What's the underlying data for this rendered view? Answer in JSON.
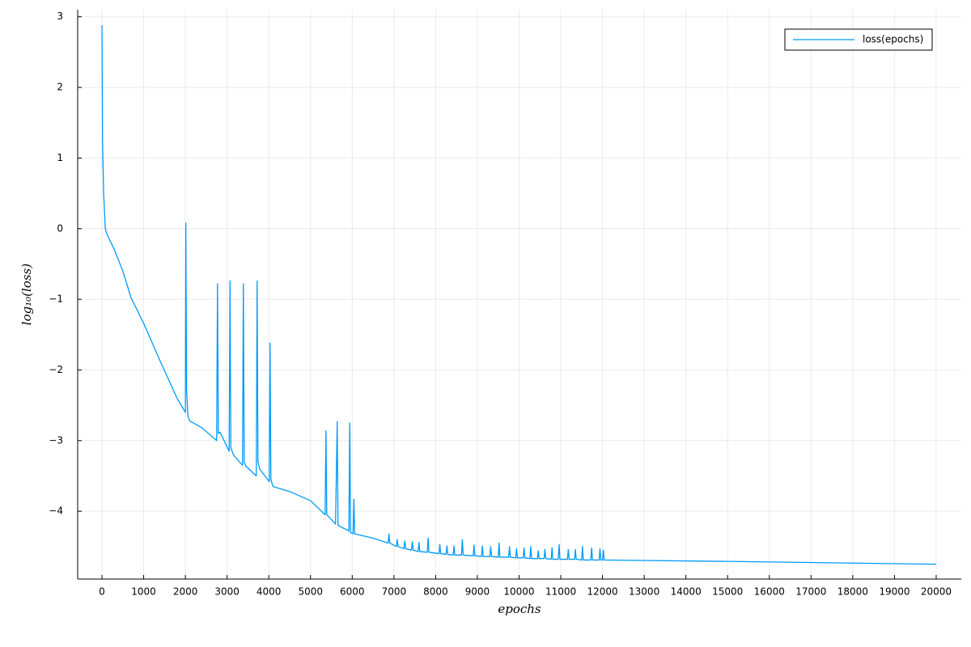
{
  "chart_data": {
    "type": "line",
    "xlabel": "epochs",
    "ylabel": "log₁₀(loss)",
    "xlim": [
      -582,
      20602
    ],
    "ylim": [
      -4.96,
      3.1
    ],
    "xticks": [
      0,
      1000,
      2000,
      3000,
      4000,
      5000,
      6000,
      7000,
      8000,
      9000,
      10000,
      11000,
      12000,
      13000,
      14000,
      15000,
      16000,
      17000,
      18000,
      19000,
      20000
    ],
    "yticks": [
      {
        "value": -4,
        "label": "−4"
      },
      {
        "value": -3,
        "label": "−3"
      },
      {
        "value": -2,
        "label": "−2"
      },
      {
        "value": -1,
        "label": "−1"
      },
      0,
      1,
      2,
      3
    ],
    "grid": true,
    "legend": "topright",
    "x": [
      0,
      15,
      40,
      80,
      120,
      300,
      500,
      700,
      1000,
      1400,
      1800,
      2000,
      2010,
      2030,
      2060,
      2100,
      2400,
      2750,
      2770,
      2790,
      2830,
      3050,
      3070,
      3090,
      3150,
      3370,
      3390,
      3410,
      3450,
      3700,
      3720,
      3740,
      3780,
      4010,
      4030,
      4050,
      4100,
      4500,
      5000,
      5350,
      5370,
      5390,
      5600,
      5640,
      5660,
      5920,
      5940,
      5960,
      6020,
      6040,
      6060,
      6500,
      6860,
      6880,
      6900,
      7060,
      7080,
      7100,
      7240,
      7260,
      7280,
      7420,
      7440,
      7460,
      7580,
      7600,
      7620,
      7800,
      7820,
      7840,
      8080,
      8100,
      8120,
      8250,
      8270,
      8290,
      8420,
      8440,
      8460,
      8620,
      8640,
      8660,
      8900,
      8920,
      8940,
      9100,
      9120,
      9140,
      9300,
      9320,
      9340,
      9500,
      9520,
      9540,
      9750,
      9770,
      9790,
      9920,
      9940,
      9960,
      10100,
      10120,
      10140,
      10260,
      10280,
      10300,
      10440,
      10460,
      10480,
      10600,
      10620,
      10640,
      10770,
      10790,
      10810,
      10940,
      10960,
      10980,
      11160,
      11180,
      11200,
      11330,
      11350,
      11370,
      11500,
      11520,
      11540,
      11720,
      11740,
      11760,
      11920,
      11940,
      11960,
      12000,
      12020,
      12040,
      15000,
      20000
    ],
    "series": [
      {
        "name": "loss(epochs)",
        "color": "#009af9",
        "values": [
          2.88,
          1.2,
          0.5,
          0.0,
          -0.08,
          -0.3,
          -0.6,
          -0.98,
          -1.34,
          -1.88,
          -2.4,
          -2.6,
          0.08,
          -2.3,
          -2.65,
          -2.72,
          -2.82,
          -3.0,
          -0.78,
          -2.9,
          -2.88,
          -3.15,
          -0.74,
          -3.1,
          -3.2,
          -3.35,
          -0.78,
          -3.3,
          -3.36,
          -3.5,
          -0.74,
          -3.3,
          -3.4,
          -3.58,
          -1.62,
          -3.55,
          -3.65,
          -3.72,
          -3.85,
          -4.05,
          -2.86,
          -4.05,
          -4.18,
          -2.73,
          -4.2,
          -4.28,
          -2.75,
          -4.3,
          -4.32,
          -3.83,
          -4.32,
          -4.38,
          -4.45,
          -4.32,
          -4.45,
          -4.5,
          -4.4,
          -4.5,
          -4.53,
          -4.42,
          -4.53,
          -4.55,
          -4.43,
          -4.55,
          -4.57,
          -4.44,
          -4.57,
          -4.58,
          -4.38,
          -4.58,
          -4.6,
          -4.47,
          -4.6,
          -4.61,
          -4.49,
          -4.61,
          -4.62,
          -4.49,
          -4.62,
          -4.62,
          -4.4,
          -4.62,
          -4.63,
          -4.48,
          -4.63,
          -4.64,
          -4.49,
          -4.64,
          -4.64,
          -4.5,
          -4.64,
          -4.65,
          -4.45,
          -4.65,
          -4.65,
          -4.5,
          -4.65,
          -4.66,
          -4.53,
          -4.66,
          -4.66,
          -4.52,
          -4.66,
          -4.67,
          -4.5,
          -4.67,
          -4.67,
          -4.56,
          -4.67,
          -4.67,
          -4.54,
          -4.67,
          -4.68,
          -4.52,
          -4.68,
          -4.68,
          -4.47,
          -4.68,
          -4.68,
          -4.54,
          -4.68,
          -4.68,
          -4.54,
          -4.68,
          -4.69,
          -4.5,
          -4.69,
          -4.69,
          -4.52,
          -4.69,
          -4.69,
          -4.53,
          -4.69,
          -4.69,
          -4.55,
          -4.69,
          -4.71,
          -4.75
        ]
      }
    ]
  }
}
